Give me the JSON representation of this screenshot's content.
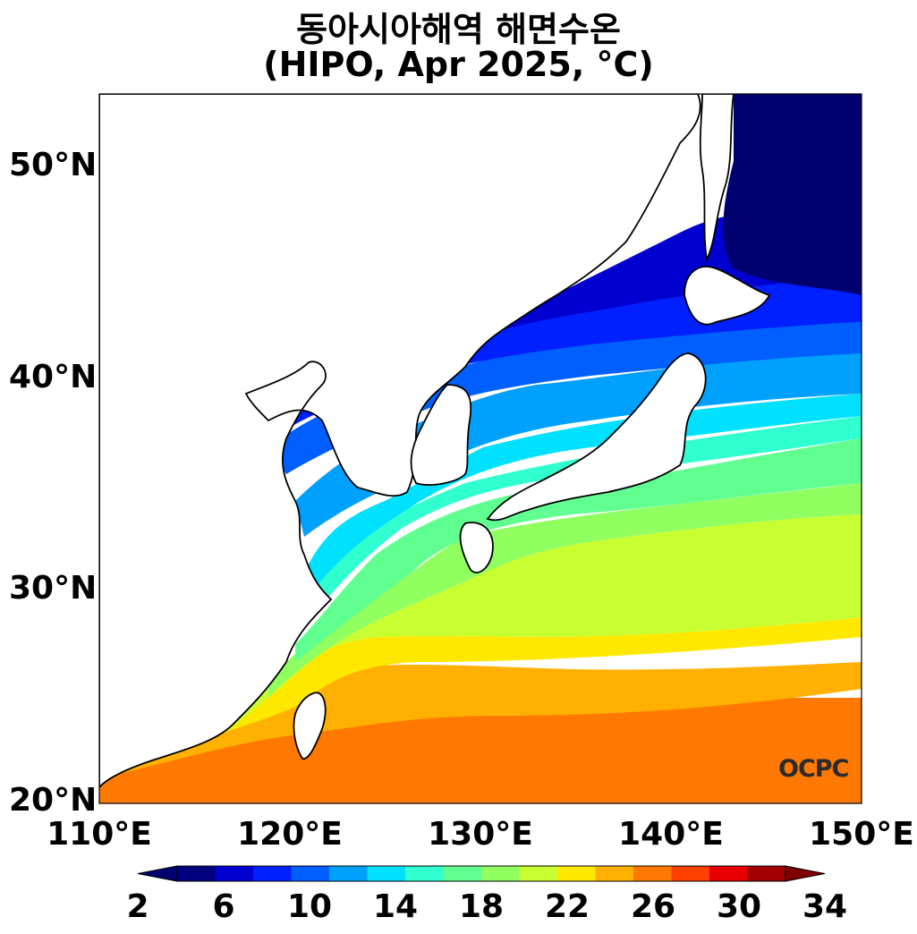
{
  "title": {
    "line1": "동아시아해역 해면수온",
    "line2": "(HIPO, Apr 2025, °C)"
  },
  "axes": {
    "y_ticks": [
      {
        "label": "50°N",
        "lat": 50
      },
      {
        "label": "40°N",
        "lat": 40
      },
      {
        "label": "30°N",
        "lat": 30
      },
      {
        "label": "20°N",
        "lat": 20
      }
    ],
    "x_ticks": [
      {
        "label": "110°E",
        "lon": 110
      },
      {
        "label": "120°E",
        "lon": 120
      },
      {
        "label": "130°E",
        "lon": 130
      },
      {
        "label": "140°E",
        "lon": 140
      },
      {
        "label": "150°E",
        "lon": 150
      }
    ],
    "lon_range": [
      110,
      150
    ],
    "lat_range": [
      20,
      53.5
    ]
  },
  "colorbar": {
    "levels": [
      2,
      4,
      6,
      8,
      10,
      12,
      14,
      16,
      18,
      20,
      22,
      24,
      26,
      28,
      30,
      32,
      34
    ],
    "tick_labels": [
      "2",
      "6",
      "10",
      "14",
      "18",
      "22",
      "26",
      "30",
      "34"
    ],
    "colors": [
      "#00007f",
      "#0000d0",
      "#0020ff",
      "#0060ff",
      "#00a0ff",
      "#00e0ff",
      "#30ffd0",
      "#60ff90",
      "#90ff60",
      "#c8ff30",
      "#ffe800",
      "#ffb000",
      "#ff7800",
      "#ff4000",
      "#e80000",
      "#a00000"
    ],
    "below_color": "#000070",
    "above_color": "#800000"
  },
  "watermark": "OCPC"
}
